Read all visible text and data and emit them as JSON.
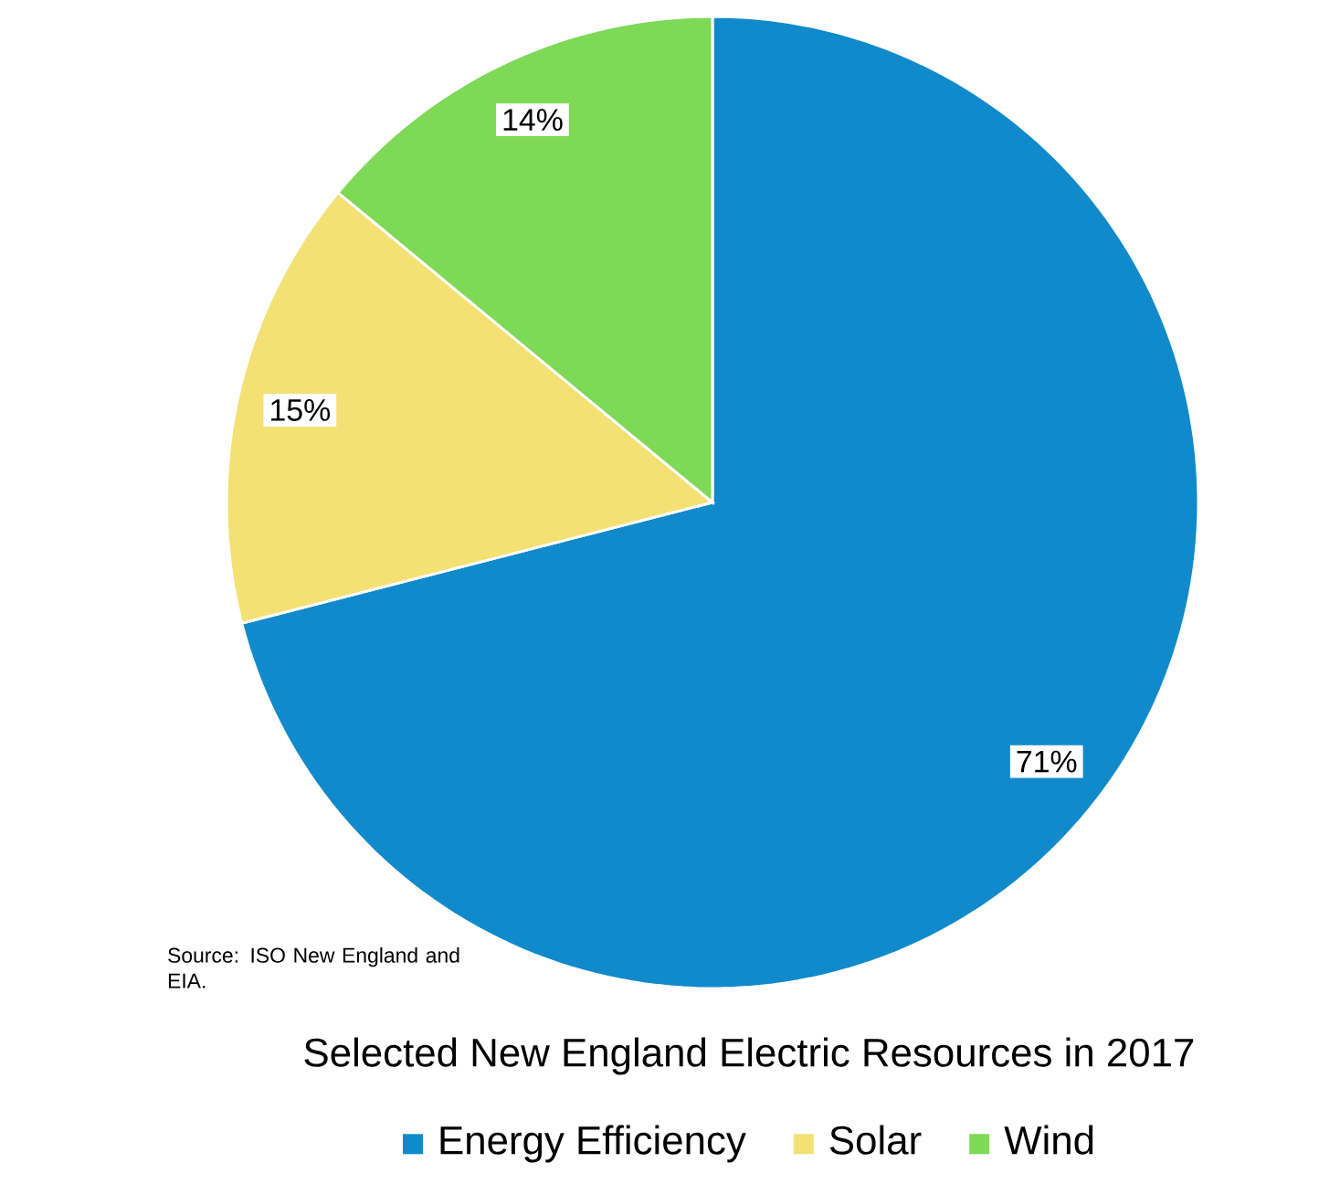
{
  "chart_data": {
    "type": "pie",
    "title": "Selected New England Electric Resources in 2017",
    "categories": [
      "Energy Efficiency",
      "Solar",
      "Wind"
    ],
    "values": [
      71,
      15,
      14
    ],
    "colors": [
      "#118acb",
      "#f3e174",
      "#7ed957"
    ],
    "value_labels": [
      "71%",
      "15%",
      "14%"
    ],
    "legend": "bottom",
    "annotations": [
      "Source: ISO New England and EIA."
    ]
  }
}
